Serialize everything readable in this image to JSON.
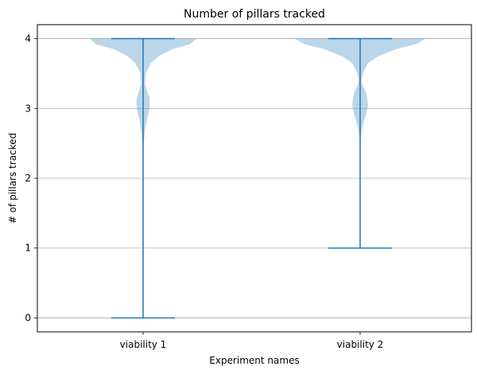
{
  "chart_data": {
    "type": "violin",
    "title": "Number of pillars tracked",
    "xlabel": "Experiment names",
    "ylabel": "# of pillars tracked",
    "categories": [
      "viability 1",
      "viability 2"
    ],
    "ylim": [
      -0.2,
      4.2
    ],
    "yticks": [
      0,
      1,
      2,
      3,
      4
    ],
    "grid": {
      "y": true,
      "x": false
    },
    "colors": {
      "line": "#1f77b4",
      "body": "#1f77b4",
      "body_opacity": 0.3,
      "grid": "#b0b0b0"
    },
    "series": [
      {
        "category": "viability 1",
        "min": 0,
        "max": 4,
        "density": [
          [
            4.0,
            0.82
          ],
          [
            3.92,
            0.72
          ],
          [
            3.85,
            0.45
          ],
          [
            3.75,
            0.24
          ],
          [
            3.65,
            0.12
          ],
          [
            3.5,
            0.04
          ],
          [
            3.35,
            0.03
          ],
          [
            3.25,
            0.06
          ],
          [
            3.15,
            0.1
          ],
          [
            3.05,
            0.1
          ],
          [
            2.95,
            0.09
          ],
          [
            2.85,
            0.06
          ],
          [
            2.7,
            0.03
          ],
          [
            2.5,
            0.01
          ],
          [
            2.3,
            0.005
          ],
          [
            1.2,
            0.004
          ],
          [
            1.0,
            0.005
          ],
          [
            0.8,
            0.004
          ],
          [
            0.5,
            0.002
          ],
          [
            0.0,
            0.002
          ]
        ]
      },
      {
        "category": "viability 2",
        "min": 1,
        "max": 4,
        "density": [
          [
            4.0,
            1.0
          ],
          [
            3.92,
            0.86
          ],
          [
            3.85,
            0.55
          ],
          [
            3.75,
            0.28
          ],
          [
            3.65,
            0.12
          ],
          [
            3.5,
            0.04
          ],
          [
            3.42,
            0.02
          ],
          [
            3.35,
            0.03
          ],
          [
            3.25,
            0.08
          ],
          [
            3.15,
            0.11
          ],
          [
            3.05,
            0.12
          ],
          [
            2.95,
            0.1
          ],
          [
            2.85,
            0.07
          ],
          [
            2.75,
            0.04
          ],
          [
            2.6,
            0.01
          ],
          [
            2.4,
            0.004
          ],
          [
            1.0,
            0.003
          ]
        ]
      }
    ]
  }
}
